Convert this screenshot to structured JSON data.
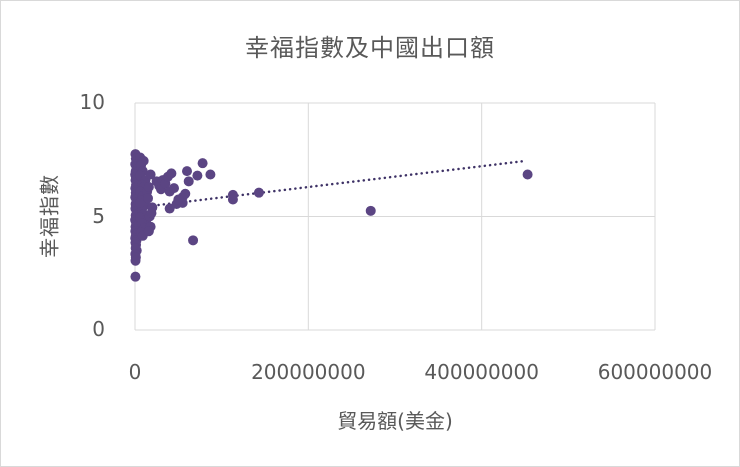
{
  "chart_data": {
    "type": "scatter",
    "title": "幸福指數及中國出口額",
    "xlabel": "貿易額(美金)",
    "ylabel": "幸福指數",
    "xlim": [
      0,
      600000000
    ],
    "ylim": [
      0,
      10
    ],
    "x_ticks": [
      "0",
      "200000000",
      "400000000",
      "600000000"
    ],
    "y_ticks": [
      "0",
      "5",
      "10"
    ],
    "grid": true,
    "legend": "none",
    "marker_color": "#5b4583",
    "trendline": {
      "type": "linear",
      "style": "dotted",
      "color": "#3e3266",
      "start": {
        "x": 15000000,
        "y": 5.45
      },
      "end": {
        "x": 451000000,
        "y": 7.45
      }
    },
    "series": [
      {
        "name": "幸福指數",
        "points_x_millions_usd_y_index": [
          [
            0.5,
            7.75
          ],
          [
            1,
            7.55
          ],
          [
            2,
            7.45
          ],
          [
            0.3,
            7.3
          ],
          [
            1.5,
            7.2
          ],
          [
            3,
            7.1
          ],
          [
            0.8,
            7.0
          ],
          [
            2.5,
            6.95
          ],
          [
            0.2,
            6.85
          ],
          [
            1,
            6.75
          ],
          [
            4,
            6.7
          ],
          [
            0.6,
            6.6
          ],
          [
            2,
            6.5
          ],
          [
            1.2,
            6.4
          ],
          [
            3.5,
            6.35
          ],
          [
            0.4,
            6.25
          ],
          [
            1.8,
            6.15
          ],
          [
            0.9,
            6.05
          ],
          [
            2.8,
            5.95
          ],
          [
            0.3,
            5.85
          ],
          [
            1.4,
            5.75
          ],
          [
            3.2,
            5.65
          ],
          [
            0.7,
            5.55
          ],
          [
            2.2,
            5.45
          ],
          [
            0.5,
            5.35
          ],
          [
            1.6,
            5.25
          ],
          [
            4.5,
            5.15
          ],
          [
            0.8,
            5.05
          ],
          [
            2.4,
            4.95
          ],
          [
            0.2,
            4.85
          ],
          [
            1.1,
            4.75
          ],
          [
            3.8,
            4.65
          ],
          [
            0.6,
            4.55
          ],
          [
            1.9,
            4.45
          ],
          [
            0.4,
            4.35
          ],
          [
            2.6,
            4.25
          ],
          [
            1,
            4.15
          ],
          [
            0.3,
            4.05
          ],
          [
            1.7,
            3.95
          ],
          [
            0.5,
            3.85
          ],
          [
            1.2,
            3.75
          ],
          [
            0.8,
            3.6
          ],
          [
            2,
            3.5
          ],
          [
            0.4,
            3.35
          ],
          [
            1,
            3.2
          ],
          [
            0.6,
            3.05
          ],
          [
            0.5,
            2.35
          ],
          [
            6,
            7.6
          ],
          [
            8,
            7.4
          ],
          [
            10,
            7.45
          ],
          [
            7,
            7.25
          ],
          [
            9,
            7.0
          ],
          [
            6,
            6.8
          ],
          [
            12,
            6.6
          ],
          [
            8,
            6.4
          ],
          [
            10,
            6.3
          ],
          [
            6,
            6.1
          ],
          [
            9,
            5.9
          ],
          [
            7,
            5.7
          ],
          [
            12,
            5.5
          ],
          [
            8,
            5.3
          ],
          [
            10,
            5.1
          ],
          [
            6,
            4.95
          ],
          [
            13,
            4.85
          ],
          [
            8,
            4.7
          ],
          [
            11,
            4.5
          ],
          [
            7,
            4.3
          ],
          [
            9,
            4.15
          ],
          [
            6,
            5.6
          ],
          [
            14,
            6.1
          ],
          [
            15,
            5.8
          ],
          [
            16,
            6.3
          ],
          [
            18,
            6.85
          ],
          [
            20,
            5.4
          ],
          [
            17,
            5.0
          ],
          [
            18,
            4.55
          ],
          [
            16,
            4.35
          ],
          [
            19,
            5.15
          ],
          [
            25,
            6.55
          ],
          [
            28,
            6.35
          ],
          [
            30,
            6.2
          ],
          [
            32,
            6.6
          ],
          [
            35,
            6.45
          ],
          [
            38,
            6.75
          ],
          [
            40,
            6.1
          ],
          [
            42,
            6.9
          ],
          [
            45,
            6.25
          ],
          [
            48,
            5.55
          ],
          [
            40,
            5.35
          ],
          [
            55,
            5.85
          ],
          [
            58,
            6.0
          ],
          [
            55,
            5.6
          ],
          [
            60,
            7.0
          ],
          [
            62,
            6.55
          ],
          [
            50,
            5.75
          ],
          [
            72,
            6.8
          ],
          [
            78,
            7.35
          ],
          [
            87,
            6.85
          ],
          [
            67,
            3.95
          ],
          [
            113,
            5.95
          ],
          [
            113,
            5.75
          ],
          [
            143,
            6.05
          ],
          [
            272,
            5.25
          ],
          [
            453,
            6.85
          ]
        ]
      }
    ]
  }
}
